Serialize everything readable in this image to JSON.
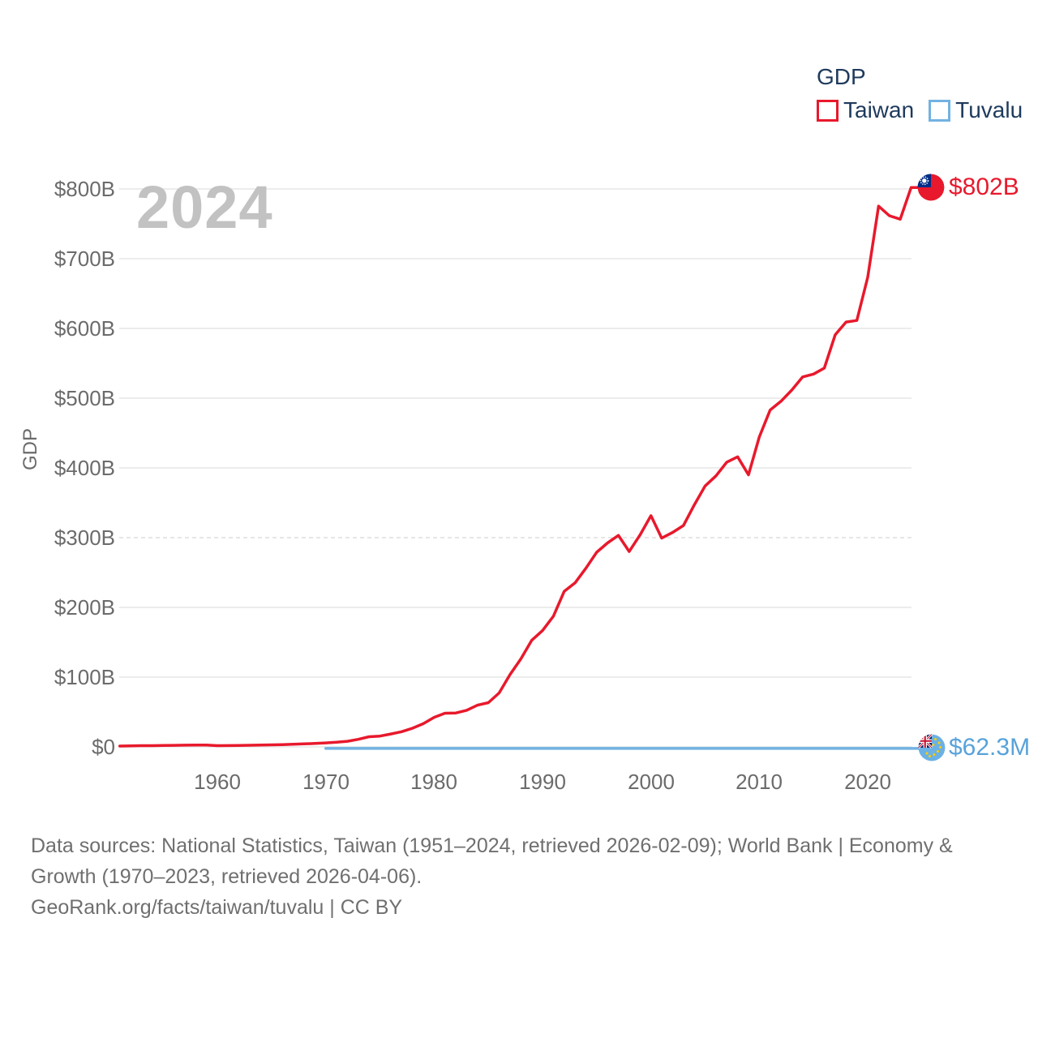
{
  "legend": {
    "title": "GDP",
    "items": [
      {
        "label": "Taiwan",
        "color": "#e8192c"
      },
      {
        "label": "Tuvalu",
        "color": "#72b2e2"
      }
    ]
  },
  "watermark": "2024",
  "axes": {
    "y_title": "GDP",
    "y_ticks": [
      "$0",
      "$100B",
      "$200B",
      "$300B",
      "$400B",
      "$500B",
      "$600B",
      "$700B",
      "$800B"
    ],
    "x_ticks": [
      "1960",
      "1970",
      "1980",
      "1990",
      "2000",
      "2010",
      "2020"
    ]
  },
  "end_labels": {
    "taiwan": "$802B",
    "tuvalu": "$62.3M"
  },
  "footer": {
    "lines": [
      "Data sources: National Statistics, Taiwan (1951–2024, retrieved 2026-02-09); World Bank | Economy &",
      "Growth (1970–2023, retrieved 2026-04-06).",
      "GeoRank.org/facts/taiwan/tuvalu | CC BY"
    ]
  },
  "colors": {
    "taiwan_red": "#e8192c",
    "tuvalu_blue": "#72b2e2",
    "tuvalu_label_blue": "#58a2da",
    "legend_text_navy": "#1e3a5c",
    "axis_text_gray": "#6b6b6b",
    "watermark_gray": "#c2c2c2",
    "gridline_gray": "#ececec",
    "footer_gray": "#6f6f6f"
  },
  "chart_data": {
    "type": "line",
    "title": "GDP",
    "ylabel": "GDP",
    "xlabel": "",
    "xlim": [
      1951,
      2024
    ],
    "ylim_usd_billions": [
      0,
      800
    ],
    "yticks_billions": [
      0,
      100,
      200,
      300,
      400,
      500,
      600,
      700,
      800
    ],
    "dashed_gridline_billions": 300,
    "xticks": [
      1960,
      1970,
      1980,
      1990,
      2000,
      2010,
      2020
    ],
    "grid": true,
    "legend_position": "top-right",
    "current_frame_year": 2024,
    "series": [
      {
        "name": "Taiwan",
        "color": "#e8192c",
        "years": {
          "start": 1951,
          "end": 2024
        },
        "latest_label": "$802B",
        "values_usd_billions": [
          1.2,
          1.5,
          1.7,
          1.8,
          2.0,
          2.2,
          2.4,
          2.6,
          2.7,
          1.7,
          1.9,
          2.0,
          2.3,
          2.6,
          2.9,
          3.2,
          3.7,
          4.3,
          4.9,
          5.7,
          6.6,
          8.0,
          10.8,
          14.5,
          15.5,
          18.5,
          21.7,
          26.8,
          33.2,
          42.3,
          48.2,
          48.6,
          52.4,
          59.8,
          63.4,
          77.3,
          103.6,
          126.2,
          152.7,
          166.8,
          187.3,
          222.9,
          235.1,
          256.2,
          279.1,
          292.5,
          303.3,
          280.1,
          304.0,
          331.5,
          299.3,
          307.4,
          317.4,
          346.9,
          374.1,
          388.6,
          408.3,
          415.9,
          390.1,
          444.3,
          483.0,
          495.6,
          511.6,
          530.5,
          534.5,
          543.1,
          590.8,
          609.2,
          611.4,
          673.2,
          775.3,
          761.6,
          756.6,
          802.0
        ]
      },
      {
        "name": "Tuvalu",
        "color": "#72b2e2",
        "years": {
          "start": 1970,
          "end": 2023
        },
        "latest_label": "$62.3M",
        "latest_value_usd_billions": 0.0623,
        "flat_value_usd_billions": 0.06,
        "note": "renders as a flat line at ~$0 on this scale"
      }
    ]
  }
}
